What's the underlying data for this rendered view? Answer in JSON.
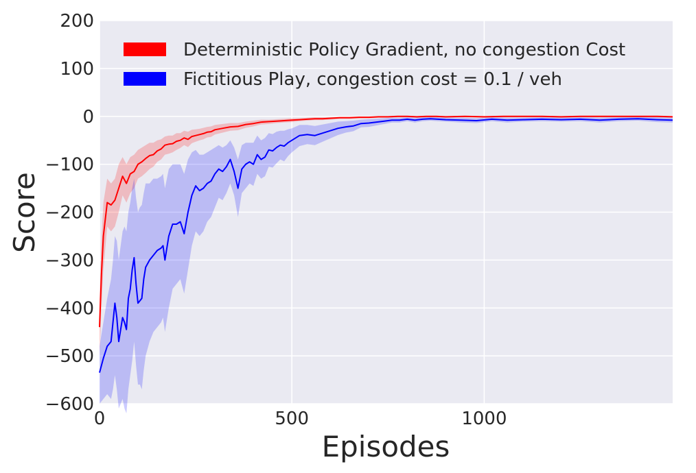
{
  "chart_data": {
    "type": "line",
    "title": "",
    "xlabel": "Episodes",
    "ylabel": "Score",
    "xlim": [
      0,
      1490
    ],
    "ylim": [
      -600,
      200
    ],
    "xticks": [
      0,
      500,
      1000
    ],
    "yticks": [
      -600,
      -500,
      -400,
      -300,
      -200,
      -100,
      0,
      100,
      200
    ],
    "xtick_labels": [
      "0",
      "500",
      "1000"
    ],
    "ytick_labels": [
      "−600",
      "−500",
      "−400",
      "−300",
      "−200",
      "−100",
      "0",
      "100",
      "200"
    ],
    "grid": true,
    "background": "#eaeaf2",
    "legend_position": "top-left",
    "series": [
      {
        "name": "Deterministic Policy Gradient, no congestion Cost",
        "color": "#ff0000",
        "band_color": "#ff0000",
        "x": [
          0,
          5,
          10,
          20,
          30,
          40,
          50,
          60,
          70,
          80,
          90,
          100,
          110,
          120,
          130,
          140,
          150,
          160,
          170,
          180,
          190,
          200,
          210,
          220,
          230,
          240,
          250,
          260,
          270,
          280,
          290,
          300,
          320,
          340,
          360,
          380,
          400,
          420,
          440,
          460,
          480,
          500,
          520,
          540,
          560,
          580,
          600,
          625,
          650,
          675,
          700,
          725,
          750,
          775,
          800,
          825,
          850,
          875,
          900,
          950,
          1000,
          1050,
          1100,
          1150,
          1200,
          1250,
          1300,
          1350,
          1400,
          1450,
          1490
        ],
        "y": [
          -440,
          -330,
          -250,
          -180,
          -185,
          -175,
          -150,
          -125,
          -140,
          -120,
          -115,
          -100,
          -95,
          -88,
          -82,
          -80,
          -72,
          -68,
          -60,
          -58,
          -57,
          -52,
          -50,
          -45,
          -48,
          -42,
          -40,
          -38,
          -36,
          -33,
          -32,
          -28,
          -25,
          -22,
          -21,
          -17,
          -15,
          -12,
          -11,
          -10,
          -9,
          -8,
          -7,
          -6,
          -5,
          -5,
          -4,
          -3,
          -3,
          -2,
          -2,
          -1,
          -1,
          0,
          0,
          -1,
          0,
          0,
          -1,
          0,
          -1,
          0,
          0,
          0,
          -1,
          0,
          0,
          0,
          0,
          0,
          -1
        ],
        "upper": [
          -380,
          -260,
          -180,
          -130,
          -140,
          -130,
          -100,
          -85,
          -100,
          -85,
          -80,
          -70,
          -65,
          -60,
          -55,
          -55,
          -50,
          -48,
          -42,
          -40,
          -40,
          -35,
          -35,
          -30,
          -32,
          -28,
          -27,
          -26,
          -24,
          -22,
          -21,
          -18,
          -16,
          -14,
          -14,
          -11,
          -9,
          -7,
          -7,
          -6,
          -5,
          -4,
          -4,
          -3,
          -2,
          -2,
          -2,
          -1,
          -1,
          0,
          0,
          0,
          0,
          1,
          1,
          0,
          1,
          1,
          0,
          1,
          0,
          1,
          1,
          1,
          0,
          1,
          1,
          1,
          1,
          1,
          0
        ],
        "lower": [
          -500,
          -400,
          -320,
          -230,
          -240,
          -230,
          -200,
          -165,
          -180,
          -160,
          -150,
          -130,
          -125,
          -118,
          -110,
          -105,
          -95,
          -90,
          -80,
          -78,
          -75,
          -70,
          -66,
          -60,
          -64,
          -56,
          -53,
          -50,
          -48,
          -44,
          -43,
          -38,
          -34,
          -30,
          -29,
          -24,
          -21,
          -17,
          -16,
          -14,
          -13,
          -12,
          -10,
          -9,
          -8,
          -8,
          -7,
          -5,
          -5,
          -4,
          -4,
          -3,
          -3,
          -2,
          -2,
          -3,
          -2,
          -2,
          -3,
          -2,
          -3,
          -2,
          -2,
          -2,
          -3,
          -2,
          -2,
          -2,
          -2,
          -2,
          -3
        ]
      },
      {
        "name": "Fictitious Play, congestion cost = 0.1 / veh",
        "color": "#0000ff",
        "band_color": "#0000ff",
        "x": [
          0,
          10,
          20,
          30,
          35,
          40,
          45,
          50,
          55,
          60,
          65,
          70,
          75,
          80,
          85,
          90,
          95,
          100,
          105,
          110,
          115,
          120,
          130,
          140,
          150,
          160,
          165,
          170,
          180,
          190,
          200,
          210,
          220,
          230,
          240,
          250,
          260,
          270,
          280,
          290,
          300,
          310,
          320,
          330,
          340,
          350,
          360,
          370,
          380,
          390,
          400,
          410,
          420,
          430,
          440,
          450,
          460,
          470,
          480,
          490,
          500,
          520,
          540,
          560,
          580,
          600,
          620,
          640,
          660,
          680,
          700,
          720,
          740,
          760,
          780,
          800,
          820,
          840,
          860,
          880,
          900,
          940,
          980,
          1020,
          1060,
          1100,
          1150,
          1200,
          1250,
          1300,
          1350,
          1400,
          1450,
          1490
        ],
        "y": [
          -535,
          -505,
          -480,
          -470,
          -430,
          -390,
          -420,
          -470,
          -445,
          -420,
          -430,
          -445,
          -380,
          -360,
          -320,
          -295,
          -350,
          -390,
          -385,
          -380,
          -340,
          -315,
          -300,
          -290,
          -280,
          -275,
          -270,
          -300,
          -250,
          -225,
          -225,
          -220,
          -245,
          -200,
          -165,
          -145,
          -155,
          -150,
          -140,
          -135,
          -120,
          -110,
          -115,
          -105,
          -90,
          -115,
          -150,
          -110,
          -100,
          -95,
          -100,
          -80,
          -90,
          -85,
          -70,
          -72,
          -65,
          -60,
          -62,
          -55,
          -50,
          -40,
          -38,
          -40,
          -35,
          -30,
          -25,
          -22,
          -20,
          -15,
          -14,
          -12,
          -10,
          -8,
          -8,
          -6,
          -8,
          -6,
          -5,
          -6,
          -7,
          -8,
          -9,
          -6,
          -8,
          -7,
          -6,
          -7,
          -6,
          -8,
          -6,
          -5,
          -7,
          -8
        ],
        "upper": [
          -480,
          -430,
          -380,
          -340,
          -300,
          -250,
          -260,
          -300,
          -270,
          -240,
          -230,
          -240,
          -200,
          -180,
          -150,
          -130,
          -170,
          -200,
          -190,
          -185,
          -160,
          -140,
          -140,
          -130,
          -130,
          -125,
          -120,
          -150,
          -110,
          -100,
          -100,
          -100,
          -120,
          -90,
          -75,
          -70,
          -80,
          -80,
          -75,
          -70,
          -65,
          -60,
          -65,
          -60,
          -50,
          -65,
          -90,
          -60,
          -55,
          -55,
          -55,
          -40,
          -50,
          -45,
          -35,
          -37,
          -32,
          -30,
          -30,
          -27,
          -25,
          -18,
          -18,
          -20,
          -17,
          -14,
          -11,
          -10,
          -9,
          -7,
          -6,
          -5,
          -4,
          -3,
          -3,
          -2,
          -3,
          -2,
          -1,
          -2,
          -3,
          -3,
          -4,
          -2,
          -3,
          -3,
          -2,
          -3,
          -2,
          -3,
          -2,
          -1,
          -2,
          -3
        ],
        "lower": [
          -600,
          -590,
          -580,
          -590,
          -570,
          -540,
          -570,
          -610,
          -600,
          -590,
          -610,
          -620,
          -570,
          -540,
          -510,
          -470,
          -520,
          -560,
          -560,
          -570,
          -530,
          -500,
          -470,
          -450,
          -440,
          -430,
          -420,
          -450,
          -400,
          -360,
          -350,
          -340,
          -370,
          -320,
          -270,
          -240,
          -250,
          -240,
          -220,
          -210,
          -190,
          -170,
          -175,
          -160,
          -140,
          -165,
          -210,
          -160,
          -150,
          -140,
          -145,
          -120,
          -130,
          -125,
          -105,
          -107,
          -98,
          -90,
          -94,
          -83,
          -75,
          -62,
          -58,
          -60,
          -53,
          -46,
          -39,
          -34,
          -31,
          -23,
          -22,
          -19,
          -16,
          -13,
          -13,
          -10,
          -13,
          -10,
          -9,
          -10,
          -11,
          -13,
          -14,
          -10,
          -13,
          -11,
          -10,
          -11,
          -10,
          -13,
          -10,
          -9,
          -12,
          -13
        ]
      }
    ]
  }
}
